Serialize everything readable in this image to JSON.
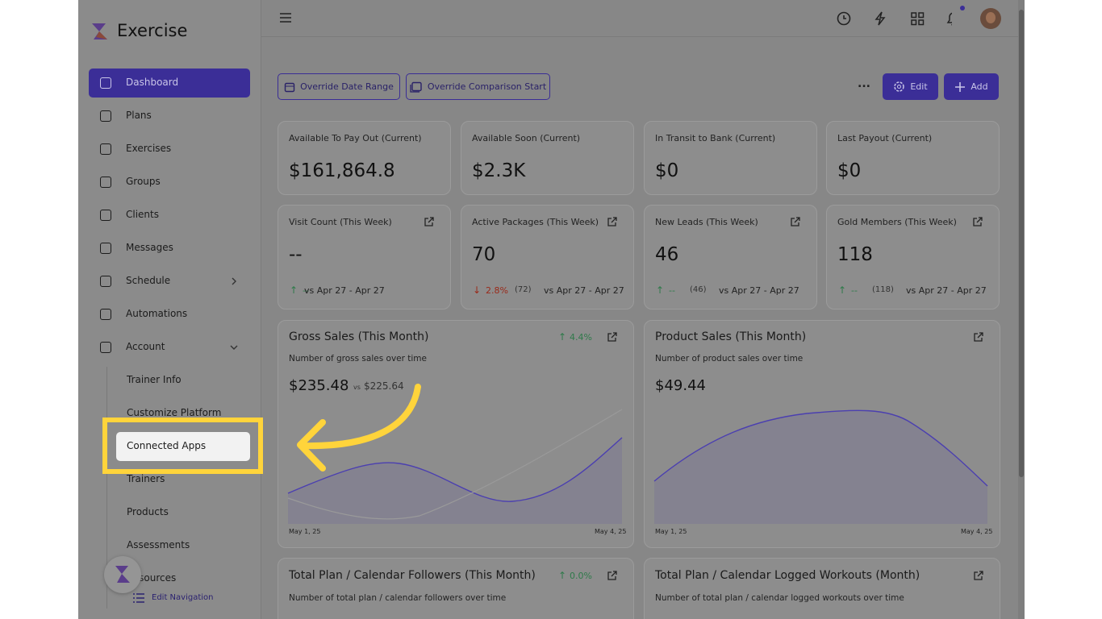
{
  "sidebar": {
    "brand": "Exercise",
    "nav": [
      "Dashboard",
      "Plans",
      "Exercises",
      "Groups",
      "Clients",
      "Messages",
      "Schedule",
      "Automations",
      "Account"
    ],
    "account_items": [
      "Trainer Info",
      "Customize Platform",
      "Connected Apps",
      "Trainers",
      "Products",
      "Assessments",
      "Resources"
    ],
    "edit_navigation": "Edit Navigation"
  },
  "toolbar": {
    "override_date_range": "Override Date Range",
    "override_comparison_start": "Override Comparison Start",
    "more": "...",
    "edit": "Edit",
    "add": "Add"
  },
  "stat_cards": [
    {
      "title": "Available To Pay Out (Current)",
      "value": "$161,864.8"
    },
    {
      "title": "Available Soon (Current)",
      "value": "$2.3K"
    },
    {
      "title": "In Transit to Bank (Current)",
      "value": "$0"
    },
    {
      "title": "Last Payout (Current)",
      "value": "$0"
    }
  ],
  "metric_cards": [
    {
      "title": "Visit Count (This Week)",
      "value": "--",
      "change": "--",
      "count": null,
      "comparison": "vs Apr 27 - Apr 27"
    },
    {
      "title": "Active Packages (This Week)",
      "value": "70",
      "change": "2.8%",
      "count": "(72)",
      "comparison": "vs Apr 27 - Apr 27"
    },
    {
      "title": "New Leads (This Week)",
      "value": "46",
      "change": "--",
      "count": "(46)",
      "comparison": "vs Apr 27 - Apr 27"
    },
    {
      "title": "Gold Members (This Week)",
      "value": "118",
      "change": "--",
      "count": "(118)",
      "comparison": "vs Apr 27 - Apr 27"
    }
  ],
  "chart_cards": [
    {
      "title": "Gross Sales (This Month)",
      "change": "4.4%",
      "subtitle": "Number of gross sales over time",
      "value": "$235.48",
      "vs": "vs",
      "previous": "$225.64",
      "start_date": "May 1, 25",
      "end_date": "May 4, 25"
    },
    {
      "title": "Product Sales (This Month)",
      "subtitle": "Number of product sales over time",
      "value": "$49.44",
      "start_date": "May 1, 25",
      "end_date": "May 4, 25"
    }
  ],
  "bottom_cards": [
    {
      "title": "Total Plan / Calendar Followers (This Month)",
      "change": "0.0%",
      "subtitle": "Number of total plan / calendar followers over time"
    },
    {
      "title": "Total Plan / Calendar Logged Workouts (Month)",
      "subtitle": "Number of total plan / calendar logged workouts over time"
    }
  ]
}
